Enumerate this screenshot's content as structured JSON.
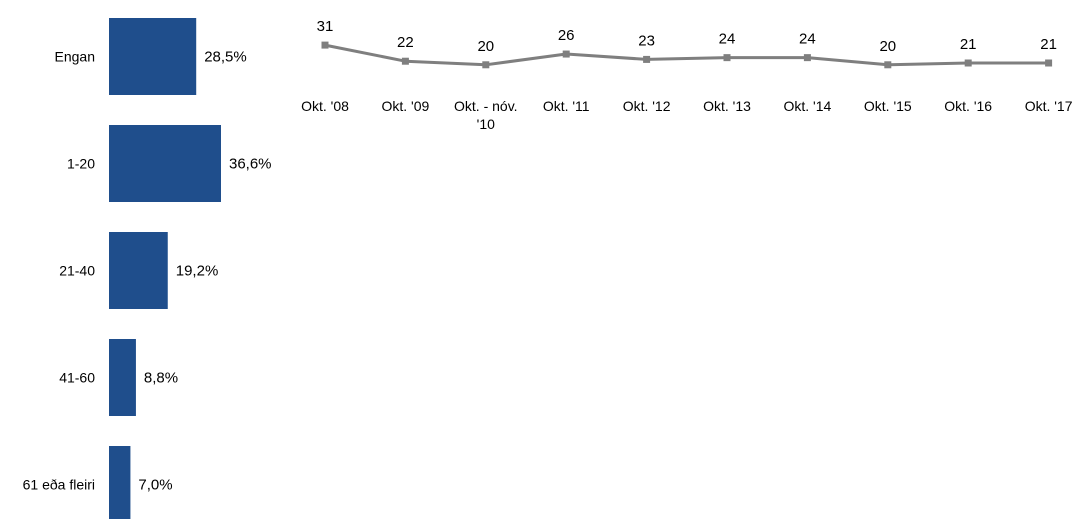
{
  "chart_data": [
    {
      "type": "bar",
      "orientation": "horizontal",
      "categories": [
        "Engan",
        "1-20",
        "21-40",
        "41-60",
        "61 eða fleiri"
      ],
      "values": [
        28.5,
        36.6,
        19.2,
        8.8,
        7.0
      ],
      "value_labels": [
        "28,5%",
        "36,6%",
        "19,2%",
        "8,8%",
        "7,0%"
      ],
      "color": "#1F4E8C",
      "title": "",
      "xlabel": "",
      "ylabel": ""
    },
    {
      "type": "line",
      "categories": [
        "Okt. '08",
        "Okt. '09",
        "Okt. - nóv. '10",
        "Okt. '11",
        "Okt. '12",
        "Okt. '13",
        "Okt. '14",
        "Okt. '15",
        "Okt. '16",
        "Okt. '17"
      ],
      "category_lines": [
        [
          "Okt. '08"
        ],
        [
          "Okt. '09"
        ],
        [
          "Okt. - nóv.",
          "'10"
        ],
        [
          "Okt. '11"
        ],
        [
          "Okt. '12"
        ],
        [
          "Okt. '13"
        ],
        [
          "Okt. '14"
        ],
        [
          "Okt. '15"
        ],
        [
          "Okt. '16"
        ],
        [
          "Okt. '17"
        ]
      ],
      "values": [
        31,
        22,
        20,
        26,
        23,
        24,
        24,
        20,
        21,
        21
      ],
      "color": "#7F7F7F",
      "marker": "square",
      "title": "",
      "xlabel": "",
      "ylabel": ""
    }
  ]
}
